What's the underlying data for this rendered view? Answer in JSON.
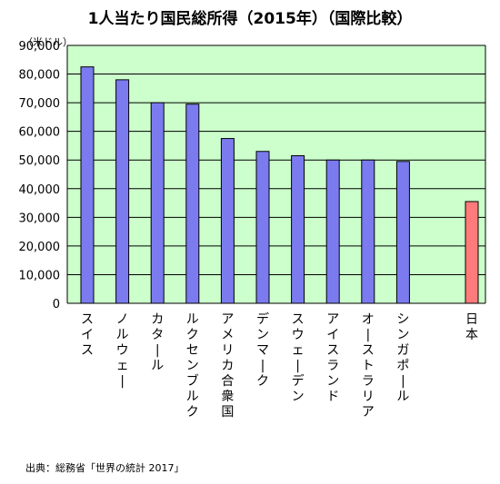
{
  "title": "1人当たり国民総所得（2015年）（国際比較）",
  "unit_label": "（米ドル）",
  "source": "出典：総務省「世界の統計 2017」",
  "colors": {
    "plot_bg": "#ccffcc",
    "bar": "#7b7bef",
    "bar_highlight": "#ff7b7b",
    "grid": "#000000"
  },
  "chart_data": {
    "type": "bar",
    "title": "1人当たり国民総所得（2015年）（国際比較）",
    "ylabel": "（米ドル）",
    "xlabel": "",
    "ylim": [
      0,
      90000
    ],
    "yticks": [
      "0",
      "10,000",
      "20,000",
      "30,000",
      "40,000",
      "50,000",
      "60,000",
      "70,000",
      "80,000",
      "90,000"
    ],
    "grid": true,
    "categories": [
      "スイス",
      "ノルウェー",
      "カタール",
      "ルクセンブルク",
      "アメリカ合衆国",
      "デンマーク",
      "スウェーデン",
      "アイスランド",
      "オーストラリア",
      "シンガポール",
      "日本"
    ],
    "values": [
      82500,
      78000,
      70000,
      69500,
      57500,
      53000,
      51500,
      50000,
      50000,
      49500,
      35500
    ],
    "highlight": "日本"
  }
}
